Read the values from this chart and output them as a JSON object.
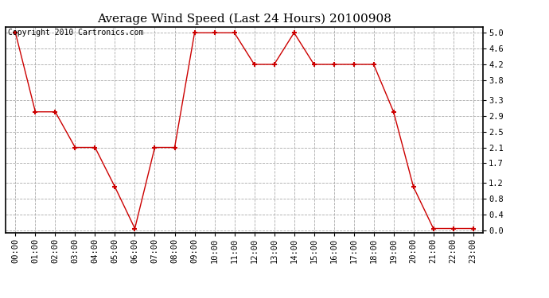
{
  "title": "Average Wind Speed (Last 24 Hours) 20100908",
  "copyright": "Copyright 2010 Cartronics.com",
  "x_labels": [
    "00:00",
    "01:00",
    "02:00",
    "03:00",
    "04:00",
    "05:00",
    "06:00",
    "07:00",
    "08:00",
    "09:00",
    "10:00",
    "11:00",
    "12:00",
    "13:00",
    "14:00",
    "15:00",
    "16:00",
    "17:00",
    "18:00",
    "19:00",
    "20:00",
    "21:00",
    "22:00",
    "23:00"
  ],
  "y_values": [
    5.0,
    3.0,
    3.0,
    2.1,
    2.1,
    1.1,
    0.05,
    2.1,
    2.1,
    5.0,
    5.0,
    5.0,
    4.2,
    4.2,
    5.0,
    4.2,
    4.2,
    4.2,
    4.2,
    3.0,
    1.1,
    0.05,
    0.05,
    0.05
  ],
  "line_color": "#cc0000",
  "marker": "+",
  "marker_size": 5,
  "marker_color": "#cc0000",
  "bg_color": "#ffffff",
  "plot_bg_color": "#ffffff",
  "grid_color": "#aaaaaa",
  "grid_style": "--",
  "yticks": [
    0.0,
    0.4,
    0.8,
    1.2,
    1.7,
    2.1,
    2.5,
    2.9,
    3.3,
    3.8,
    4.2,
    4.6,
    5.0
  ],
  "ylim": [
    -0.05,
    5.15
  ],
  "title_fontsize": 11,
  "copyright_fontsize": 7,
  "tick_fontsize": 7.5
}
